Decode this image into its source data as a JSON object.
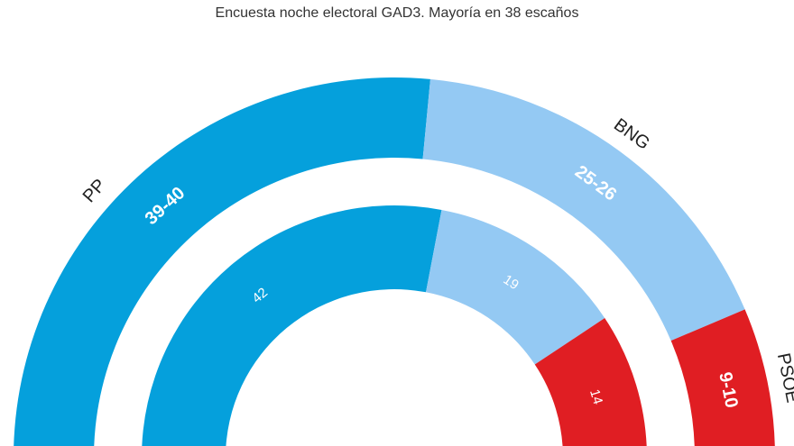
{
  "chart_data": {
    "type": "pie",
    "subtype": "semicircle-donut",
    "title": "Encuesta noche electoral GAD3. Mayoría en 38 escaños",
    "rings": [
      {
        "position": "outer",
        "slices": [
          {
            "name": "PP",
            "label": "39-40",
            "value": 39.5,
            "color": "#05a0dc"
          },
          {
            "name": "BNG",
            "label": "25-26",
            "value": 25.5,
            "color": "#94c9f3"
          },
          {
            "name": "PSOE",
            "label": "9-10",
            "value": 9.5,
            "color": "#e01e23"
          }
        ]
      },
      {
        "position": "inner",
        "slices": [
          {
            "name": "PP",
            "label": "42",
            "value": 42,
            "color": "#05a0dc"
          },
          {
            "name": "BNG",
            "label": "19",
            "value": 19,
            "color": "#94c9f3"
          },
          {
            "name": "PSOE",
            "label": "14",
            "value": 14,
            "color": "#e01e23"
          }
        ]
      }
    ]
  }
}
